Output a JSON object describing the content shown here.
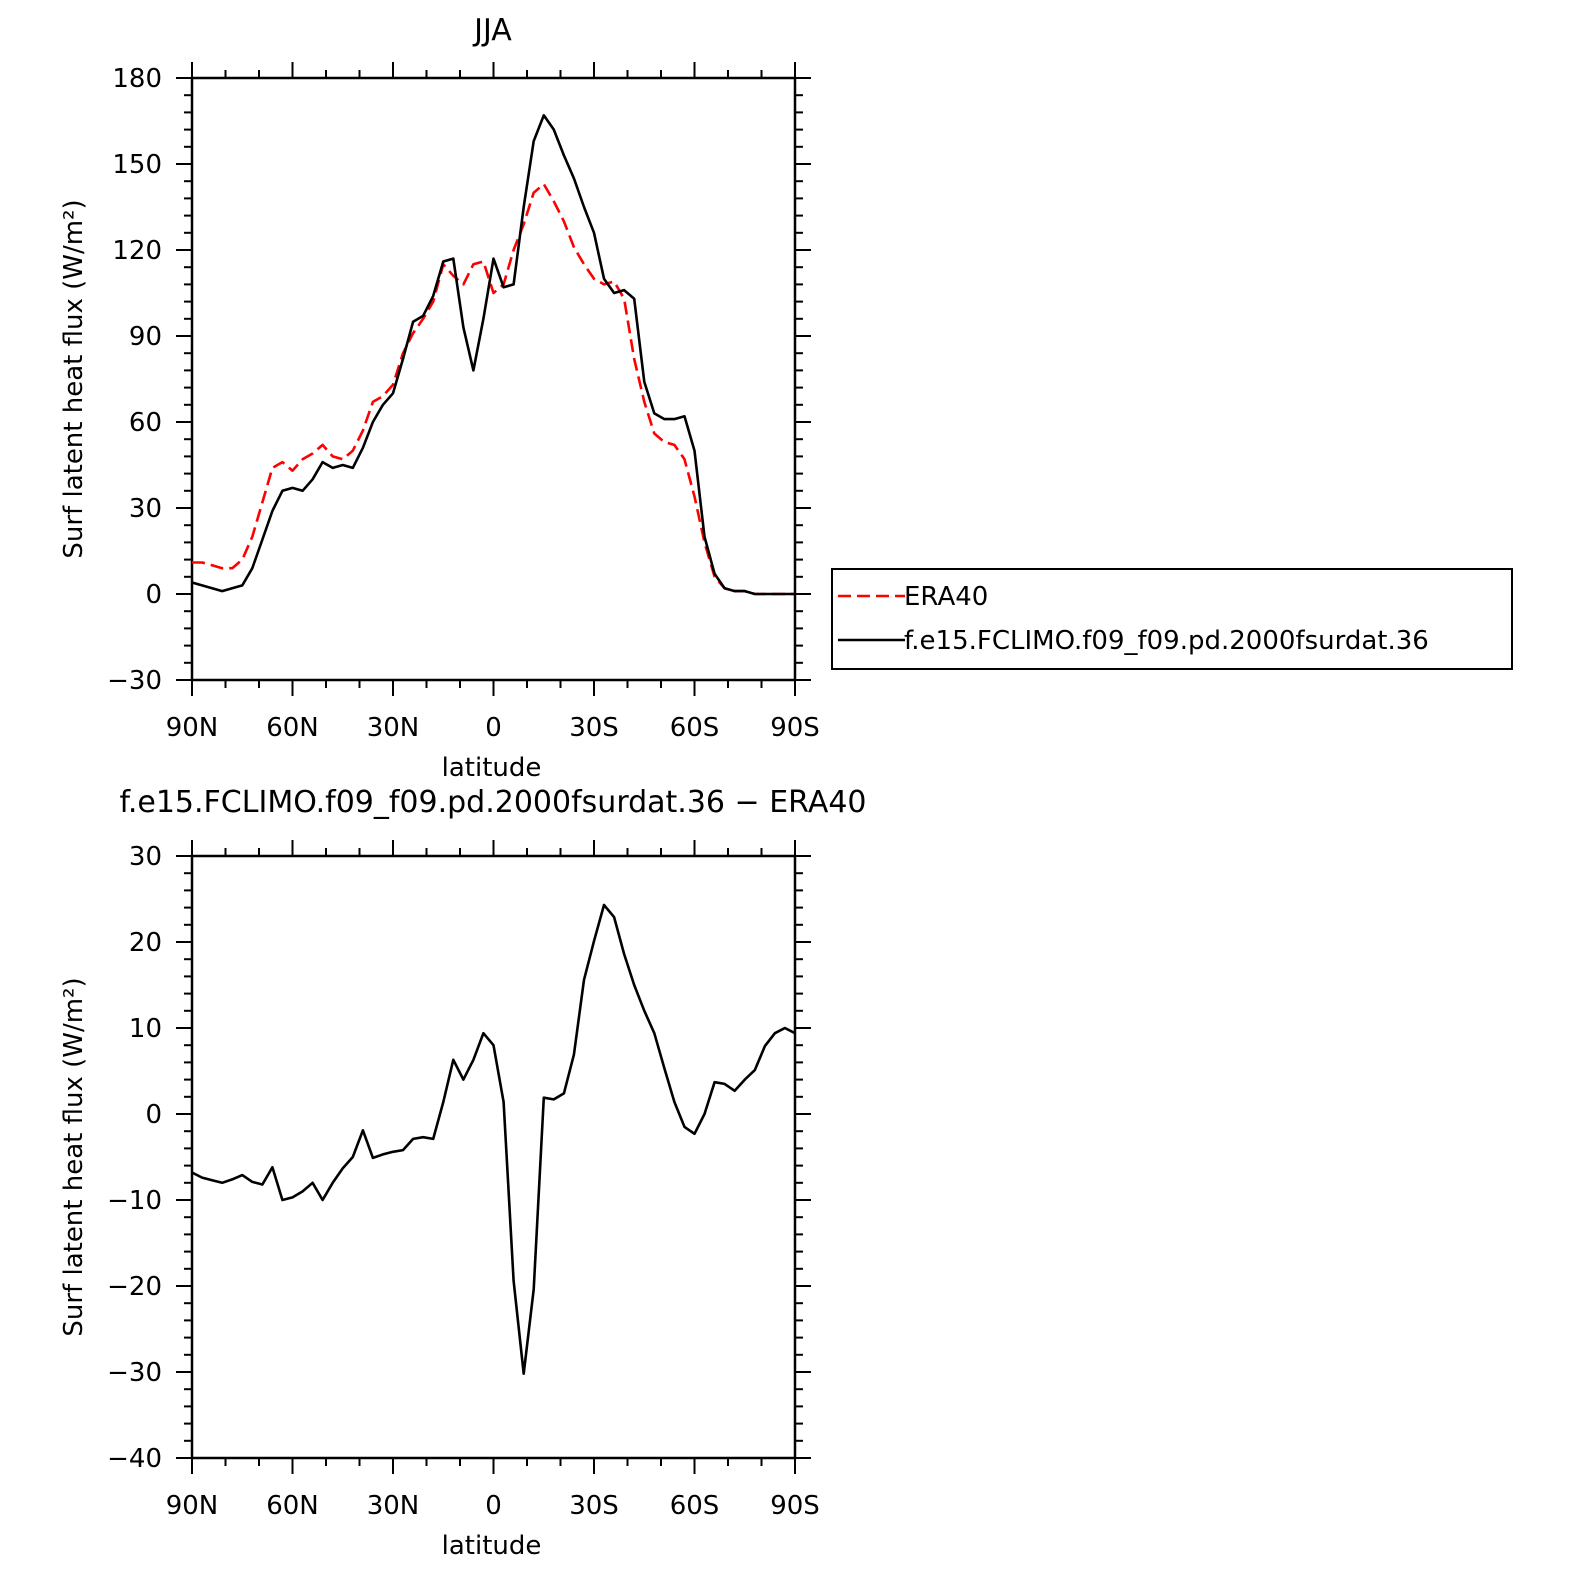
{
  "chart_data": [
    {
      "type": "line",
      "title": "JJA",
      "xlabel": "latitude",
      "ylabel": "Surf latent heat flux (W/m²)",
      "xlim": [
        90,
        -90
      ],
      "ylim": [
        -30,
        180
      ],
      "yticks": [
        -30,
        0,
        30,
        60,
        90,
        120,
        150,
        180
      ],
      "xticks": [
        90,
        60,
        30,
        0,
        -30,
        -60,
        -90
      ],
      "xtick_labels": [
        "90N",
        "60N",
        "30N",
        "0",
        "30S",
        "60S",
        "90S"
      ],
      "grid": false,
      "legend_position": "right",
      "series": [
        {
          "name": "ERA40",
          "color": "#ff0000",
          "dash": "dashed",
          "x": [
            90,
            87,
            84,
            81,
            78,
            75,
            72,
            69,
            66,
            63,
            60,
            57,
            54,
            51,
            48,
            45,
            42,
            39,
            36,
            33,
            30,
            27,
            24,
            21,
            18,
            15,
            12,
            9,
            6,
            3,
            0,
            -3,
            -6,
            -9,
            -12,
            -15,
            -18,
            -21,
            -24,
            -27,
            -30,
            -33,
            -36,
            -39,
            -42,
            -45,
            -48,
            -51,
            -54,
            -57,
            -60,
            -63,
            -66,
            -69,
            -72,
            -75,
            -78,
            -81,
            -84,
            -87,
            -90
          ],
          "y": [
            11,
            11,
            10,
            9,
            9,
            12,
            20,
            32,
            44,
            46,
            43,
            47,
            49,
            52,
            48,
            47,
            50,
            57,
            67,
            69,
            73,
            84,
            91,
            96,
            102,
            115,
            111,
            108,
            115,
            116,
            105,
            108,
            120,
            129,
            140,
            143,
            137,
            130,
            121,
            115,
            110,
            108,
            109,
            103,
            82,
            67,
            56,
            53,
            52,
            47,
            34,
            18,
            6,
            2,
            1,
            1,
            0,
            0,
            0,
            0,
            0
          ]
        },
        {
          "name": "f.e15.FCLIMO.f09_f09.pd.2000fsurdat.36",
          "color": "#000000",
          "dash": "solid",
          "x": [
            90,
            87,
            84,
            81,
            78,
            75,
            72,
            69,
            66,
            63,
            60,
            57,
            54,
            51,
            48,
            45,
            42,
            39,
            36,
            33,
            30,
            27,
            24,
            21,
            18,
            15,
            12,
            9,
            6,
            3,
            0,
            -3,
            -6,
            -9,
            -12,
            -15,
            -18,
            -21,
            -24,
            -27,
            -30,
            -33,
            -36,
            -39,
            -42,
            -45,
            -48,
            -51,
            -54,
            -57,
            -60,
            -63,
            -66,
            -69,
            -72,
            -75,
            -78,
            -81,
            -84,
            -87,
            -90
          ],
          "y": [
            4,
            3,
            2,
            1,
            2,
            3,
            9,
            19,
            29,
            36,
            37,
            36,
            40,
            46,
            44,
            45,
            44,
            51,
            60,
            66,
            70,
            82,
            95,
            97,
            104,
            116,
            117,
            93,
            78,
            96,
            117,
            107,
            108,
            135,
            158,
            167,
            162,
            153,
            145,
            135,
            126,
            110,
            105,
            106,
            103,
            74,
            63,
            61,
            61,
            62,
            50,
            20,
            7,
            2,
            1,
            1,
            0,
            0,
            0,
            0,
            0
          ]
        }
      ]
    },
    {
      "type": "line",
      "title": "f.e15.FCLIMO.f09_f09.pd.2000fsurdat.36 − ERA40",
      "xlabel": "latitude",
      "ylabel": "Surf latent heat flux (W/m²)",
      "xlim": [
        90,
        -90
      ],
      "ylim": [
        -40,
        30
      ],
      "yticks": [
        -40,
        -30,
        -20,
        -10,
        0,
        10,
        20,
        30
      ],
      "xticks": [
        90,
        60,
        30,
        0,
        -30,
        -60,
        -90
      ],
      "xtick_labels": [
        "90N",
        "60N",
        "30N",
        "0",
        "30S",
        "60S",
        "90S"
      ],
      "grid": false,
      "series": [
        {
          "color": "#000000",
          "dash": "solid",
          "x": [
            90,
            87,
            84,
            81,
            78,
            75,
            72,
            69,
            66,
            63,
            60,
            57,
            54,
            51,
            48,
            45,
            42,
            39,
            36,
            33,
            30,
            27,
            24,
            21,
            18,
            15,
            12,
            9,
            6,
            3,
            0,
            -3,
            -6,
            -9,
            -12,
            -15,
            -18,
            -21,
            -24,
            -27,
            -30,
            -33,
            -36,
            -39,
            -42,
            -45,
            -48,
            -51,
            -54,
            -57,
            -60,
            -63,
            -66,
            -69,
            -72,
            -75,
            -78,
            -81,
            -84,
            -87,
            -90
          ],
          "y": [
            -6.8,
            -7.4,
            -7.7,
            -8.0,
            -7.6,
            -7.1,
            -7.9,
            -8.2,
            -6.2,
            -10.0,
            -9.7,
            -9.0,
            -8.0,
            -10.0,
            -8.0,
            -6.3,
            -5.0,
            -1.9,
            -5.1,
            -4.7,
            -4.4,
            -4.2,
            -2.9,
            -2.7,
            -2.9,
            1.4,
            6.3,
            4.0,
            6.3,
            9.4,
            8.0,
            1.4,
            -19.4,
            -30.2,
            -20.4,
            1.9,
            1.7,
            2.4,
            6.9,
            15.6,
            20.1,
            24.3,
            22.9,
            18.6,
            15.0,
            12.0,
            9.4,
            5.3,
            1.4,
            -1.5,
            -2.3,
            0.0,
            3.7,
            3.5,
            2.7,
            4.0,
            5.1,
            7.9,
            9.4,
            10.0,
            9.4
          ]
        }
      ]
    }
  ]
}
